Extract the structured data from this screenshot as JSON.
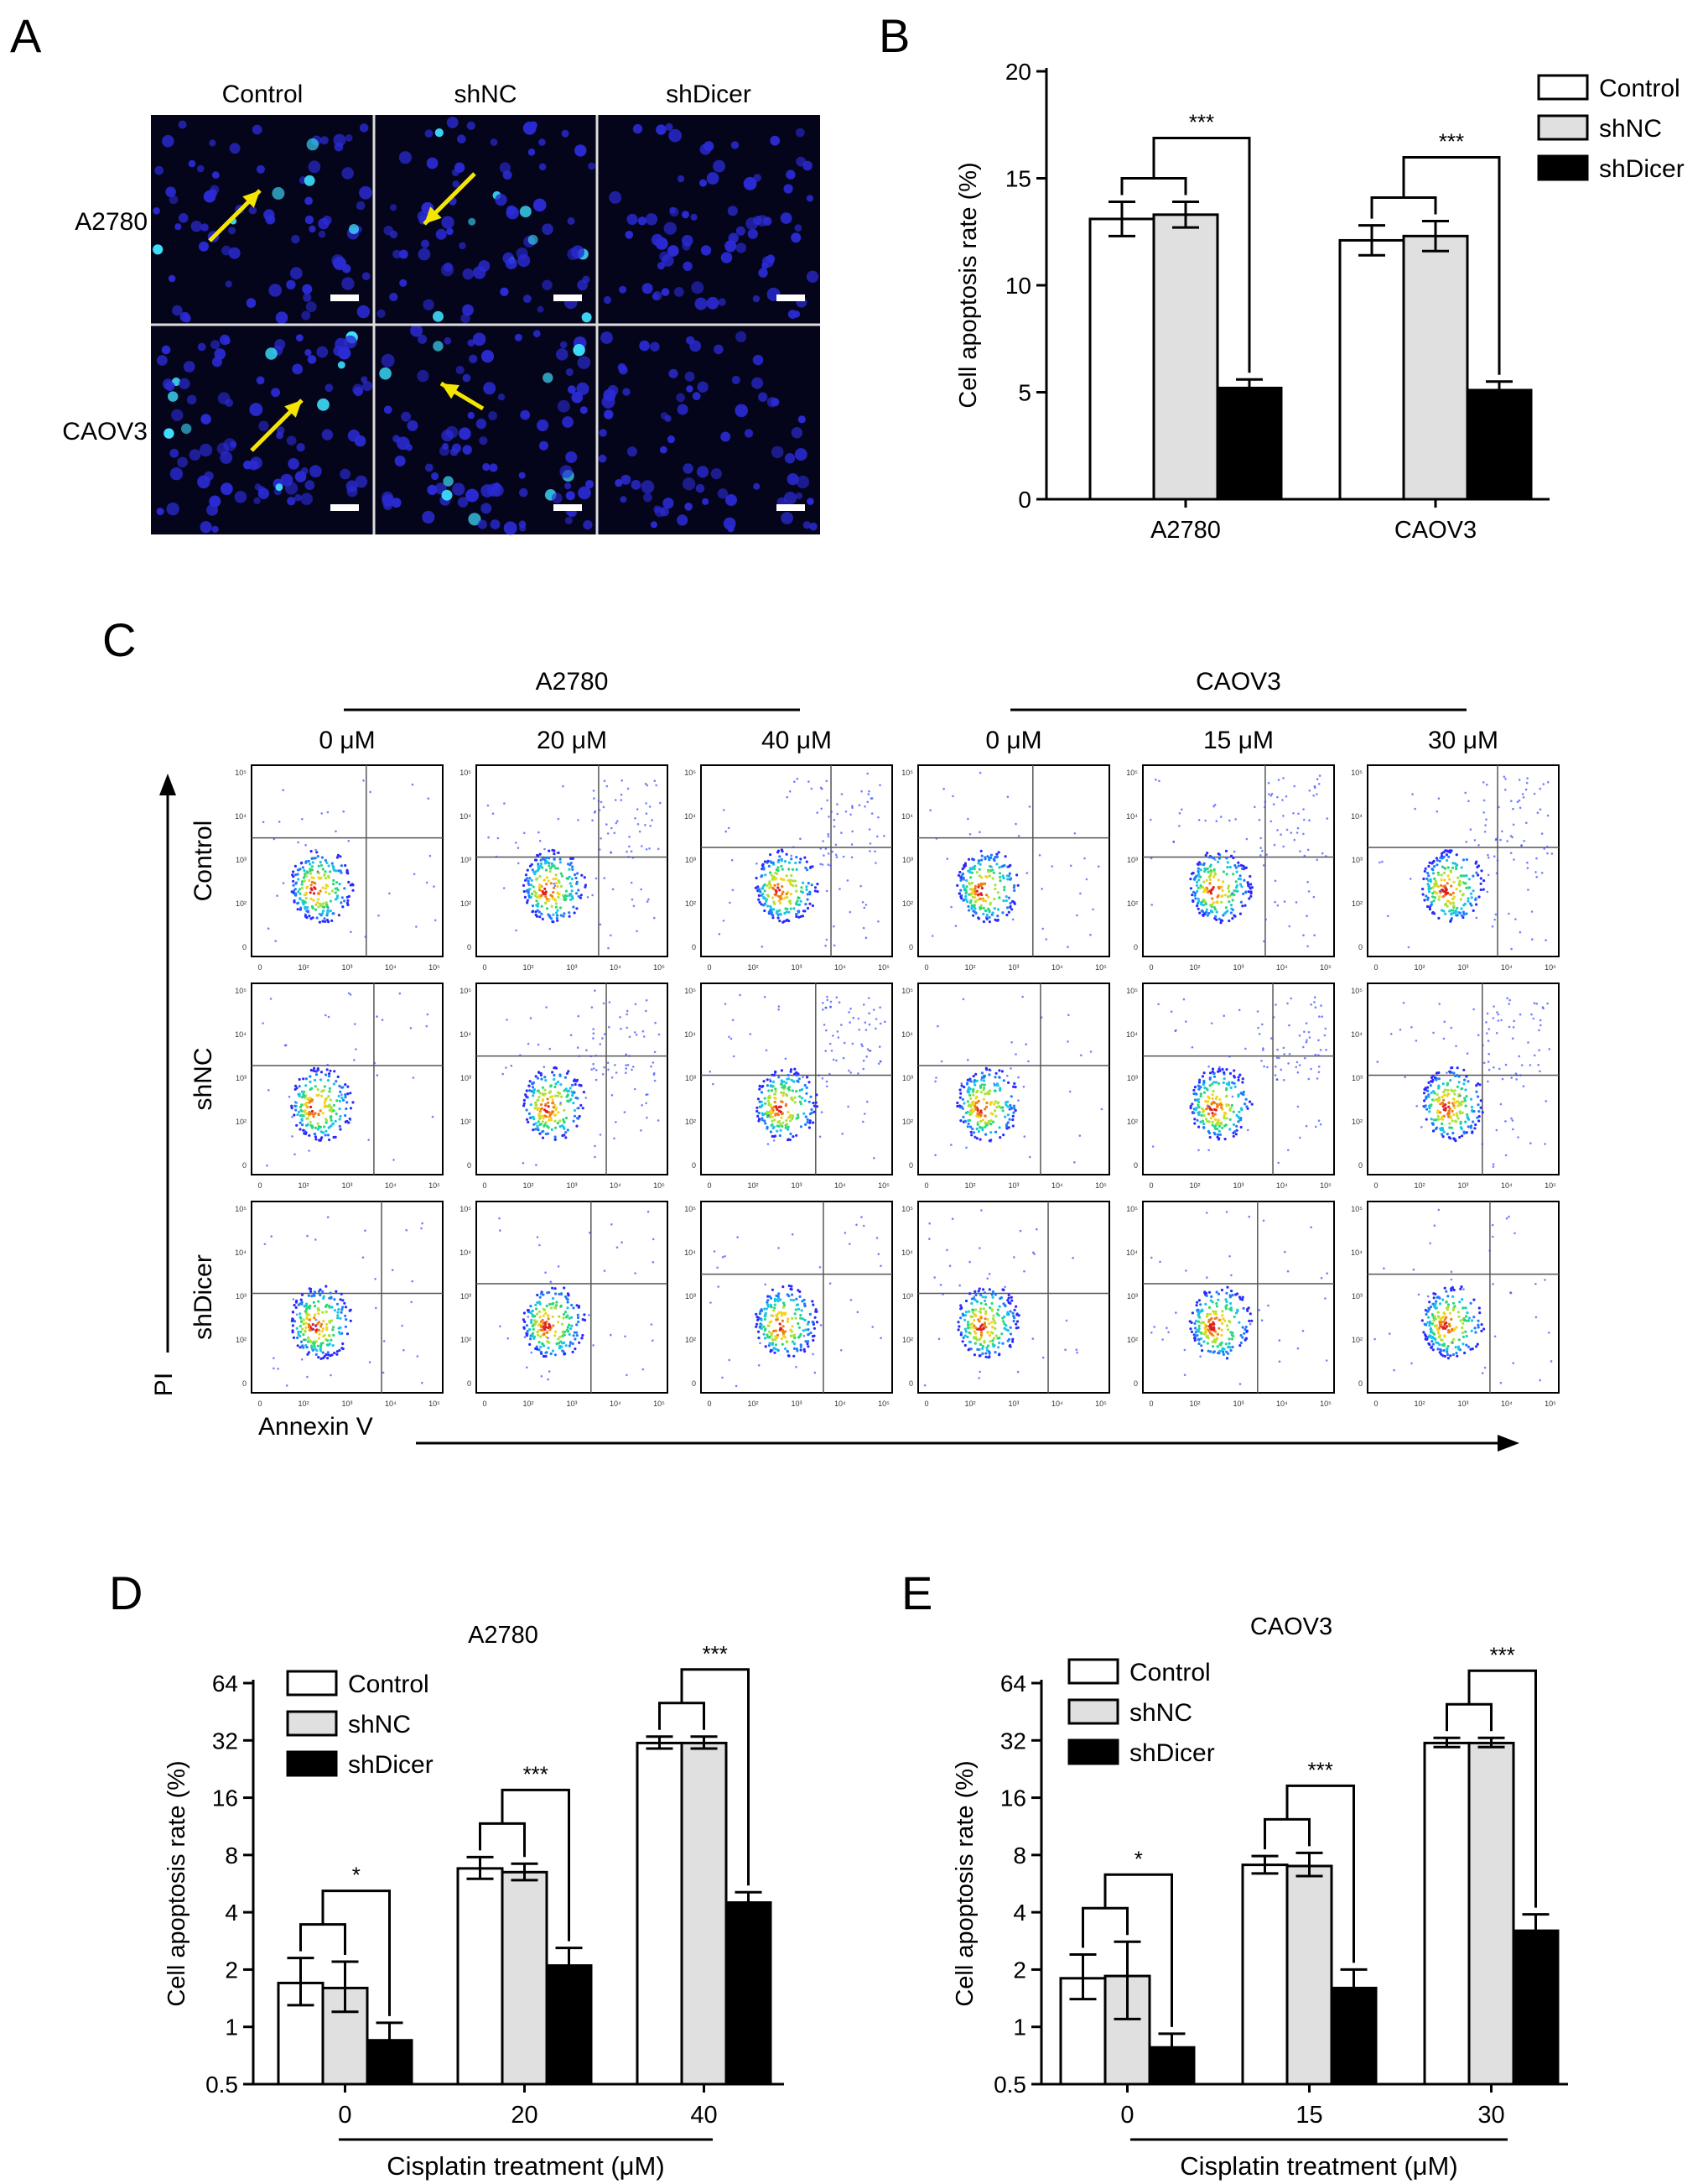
{
  "panel_labels": {
    "a": "A",
    "b": "B",
    "c": "C",
    "d": "D",
    "e": "E"
  },
  "panel_a": {
    "columns": [
      "Control",
      "shNC",
      "shDicer"
    ],
    "rows": [
      "A2780",
      "CAOV3"
    ],
    "colors": {
      "background": "#04041a",
      "nucleus": "#2b2bd6",
      "apoptotic": "#3fe0ff",
      "arrow": "#f5e600",
      "scalebar": "#ffffff"
    }
  },
  "panel_c": {
    "groups": [
      {
        "label": "A2780",
        "doses": [
          "0 μM",
          "20 μM",
          "40 μM"
        ]
      },
      {
        "label": "CAOV3",
        "doses": [
          "0 μM",
          "15 μM",
          "30 μM"
        ]
      }
    ],
    "rows": [
      "Control",
      "shNC",
      "shDicer"
    ],
    "y_axis_label": "PI",
    "x_axis_label": "Annexin V",
    "tick_labels": [
      "0",
      "10²",
      "10³",
      "10⁴",
      "10⁵"
    ]
  },
  "chart_data": [
    {
      "type": "bar",
      "panel": "B",
      "ylabel": "Cell apoptosis rate (%)",
      "ylim": [
        0,
        20
      ],
      "yticks": [
        "0",
        "5",
        "10",
        "15",
        "20"
      ],
      "categories": [
        "A2780",
        "CAOV3"
      ],
      "legend_position": "top-right",
      "series": [
        {
          "name": "Control",
          "values": [
            13.1,
            12.1
          ],
          "errors": [
            0.8,
            0.7
          ]
        },
        {
          "name": "shNC",
          "values": [
            13.3,
            12.3
          ],
          "errors": [
            0.6,
            0.7
          ]
        },
        {
          "name": "shDicer",
          "values": [
            5.2,
            5.1
          ],
          "errors": [
            0.4,
            0.4
          ]
        }
      ],
      "annotations": [
        "***",
        "***"
      ]
    },
    {
      "type": "bar",
      "panel": "D",
      "title": "A2780",
      "ylabel": "Cell apoptosis rate (%)",
      "xlabel": "Cisplatin treatment (μM)",
      "yscale": "log2",
      "ylim": [
        0.5,
        64
      ],
      "yticks": [
        "0.5",
        "1",
        "2",
        "4",
        "8",
        "16",
        "32",
        "64"
      ],
      "categories": [
        "0",
        "20",
        "40"
      ],
      "legend_position": "top-left",
      "series": [
        {
          "name": "Control",
          "values": [
            1.7,
            6.8,
            31.0
          ],
          "err_low": [
            1.3,
            6.0,
            29.0
          ],
          "err_high": [
            2.3,
            7.8,
            33.5
          ]
        },
        {
          "name": "shNC",
          "values": [
            1.6,
            6.5,
            31.0
          ],
          "err_low": [
            1.2,
            5.9,
            29.0
          ],
          "err_high": [
            2.2,
            7.2,
            33.5
          ]
        },
        {
          "name": "shDicer",
          "values": [
            0.85,
            2.1,
            4.5
          ],
          "err_low": [
            0.78,
            1.9,
            4.3
          ],
          "err_high": [
            1.05,
            2.6,
            5.1
          ]
        }
      ],
      "annotations": [
        "*",
        "***",
        "***"
      ]
    },
    {
      "type": "bar",
      "panel": "E",
      "title": "CAOV3",
      "ylabel": "Cell apoptosis rate (%)",
      "xlabel": "Cisplatin treatment (μM)",
      "yscale": "log2",
      "ylim": [
        0.5,
        64
      ],
      "yticks": [
        "0.5",
        "1",
        "2",
        "4",
        "8",
        "16",
        "32",
        "64"
      ],
      "categories": [
        "0",
        "15",
        "30"
      ],
      "legend_position": "top-left",
      "series": [
        {
          "name": "Control",
          "values": [
            1.8,
            7.1,
            31.0
          ],
          "err_low": [
            1.4,
            6.4,
            29.5
          ],
          "err_high": [
            2.4,
            7.9,
            33.0
          ]
        },
        {
          "name": "shNC",
          "values": [
            1.85,
            7.0,
            31.0
          ],
          "err_low": [
            1.1,
            6.2,
            29.5
          ],
          "err_high": [
            2.8,
            8.2,
            33.0
          ]
        },
        {
          "name": "shDicer",
          "values": [
            0.78,
            1.6,
            3.2
          ],
          "err_low": [
            0.72,
            1.4,
            2.7
          ],
          "err_high": [
            0.92,
            2.0,
            3.9
          ]
        }
      ],
      "annotations": [
        "*",
        "***",
        "***"
      ]
    }
  ]
}
